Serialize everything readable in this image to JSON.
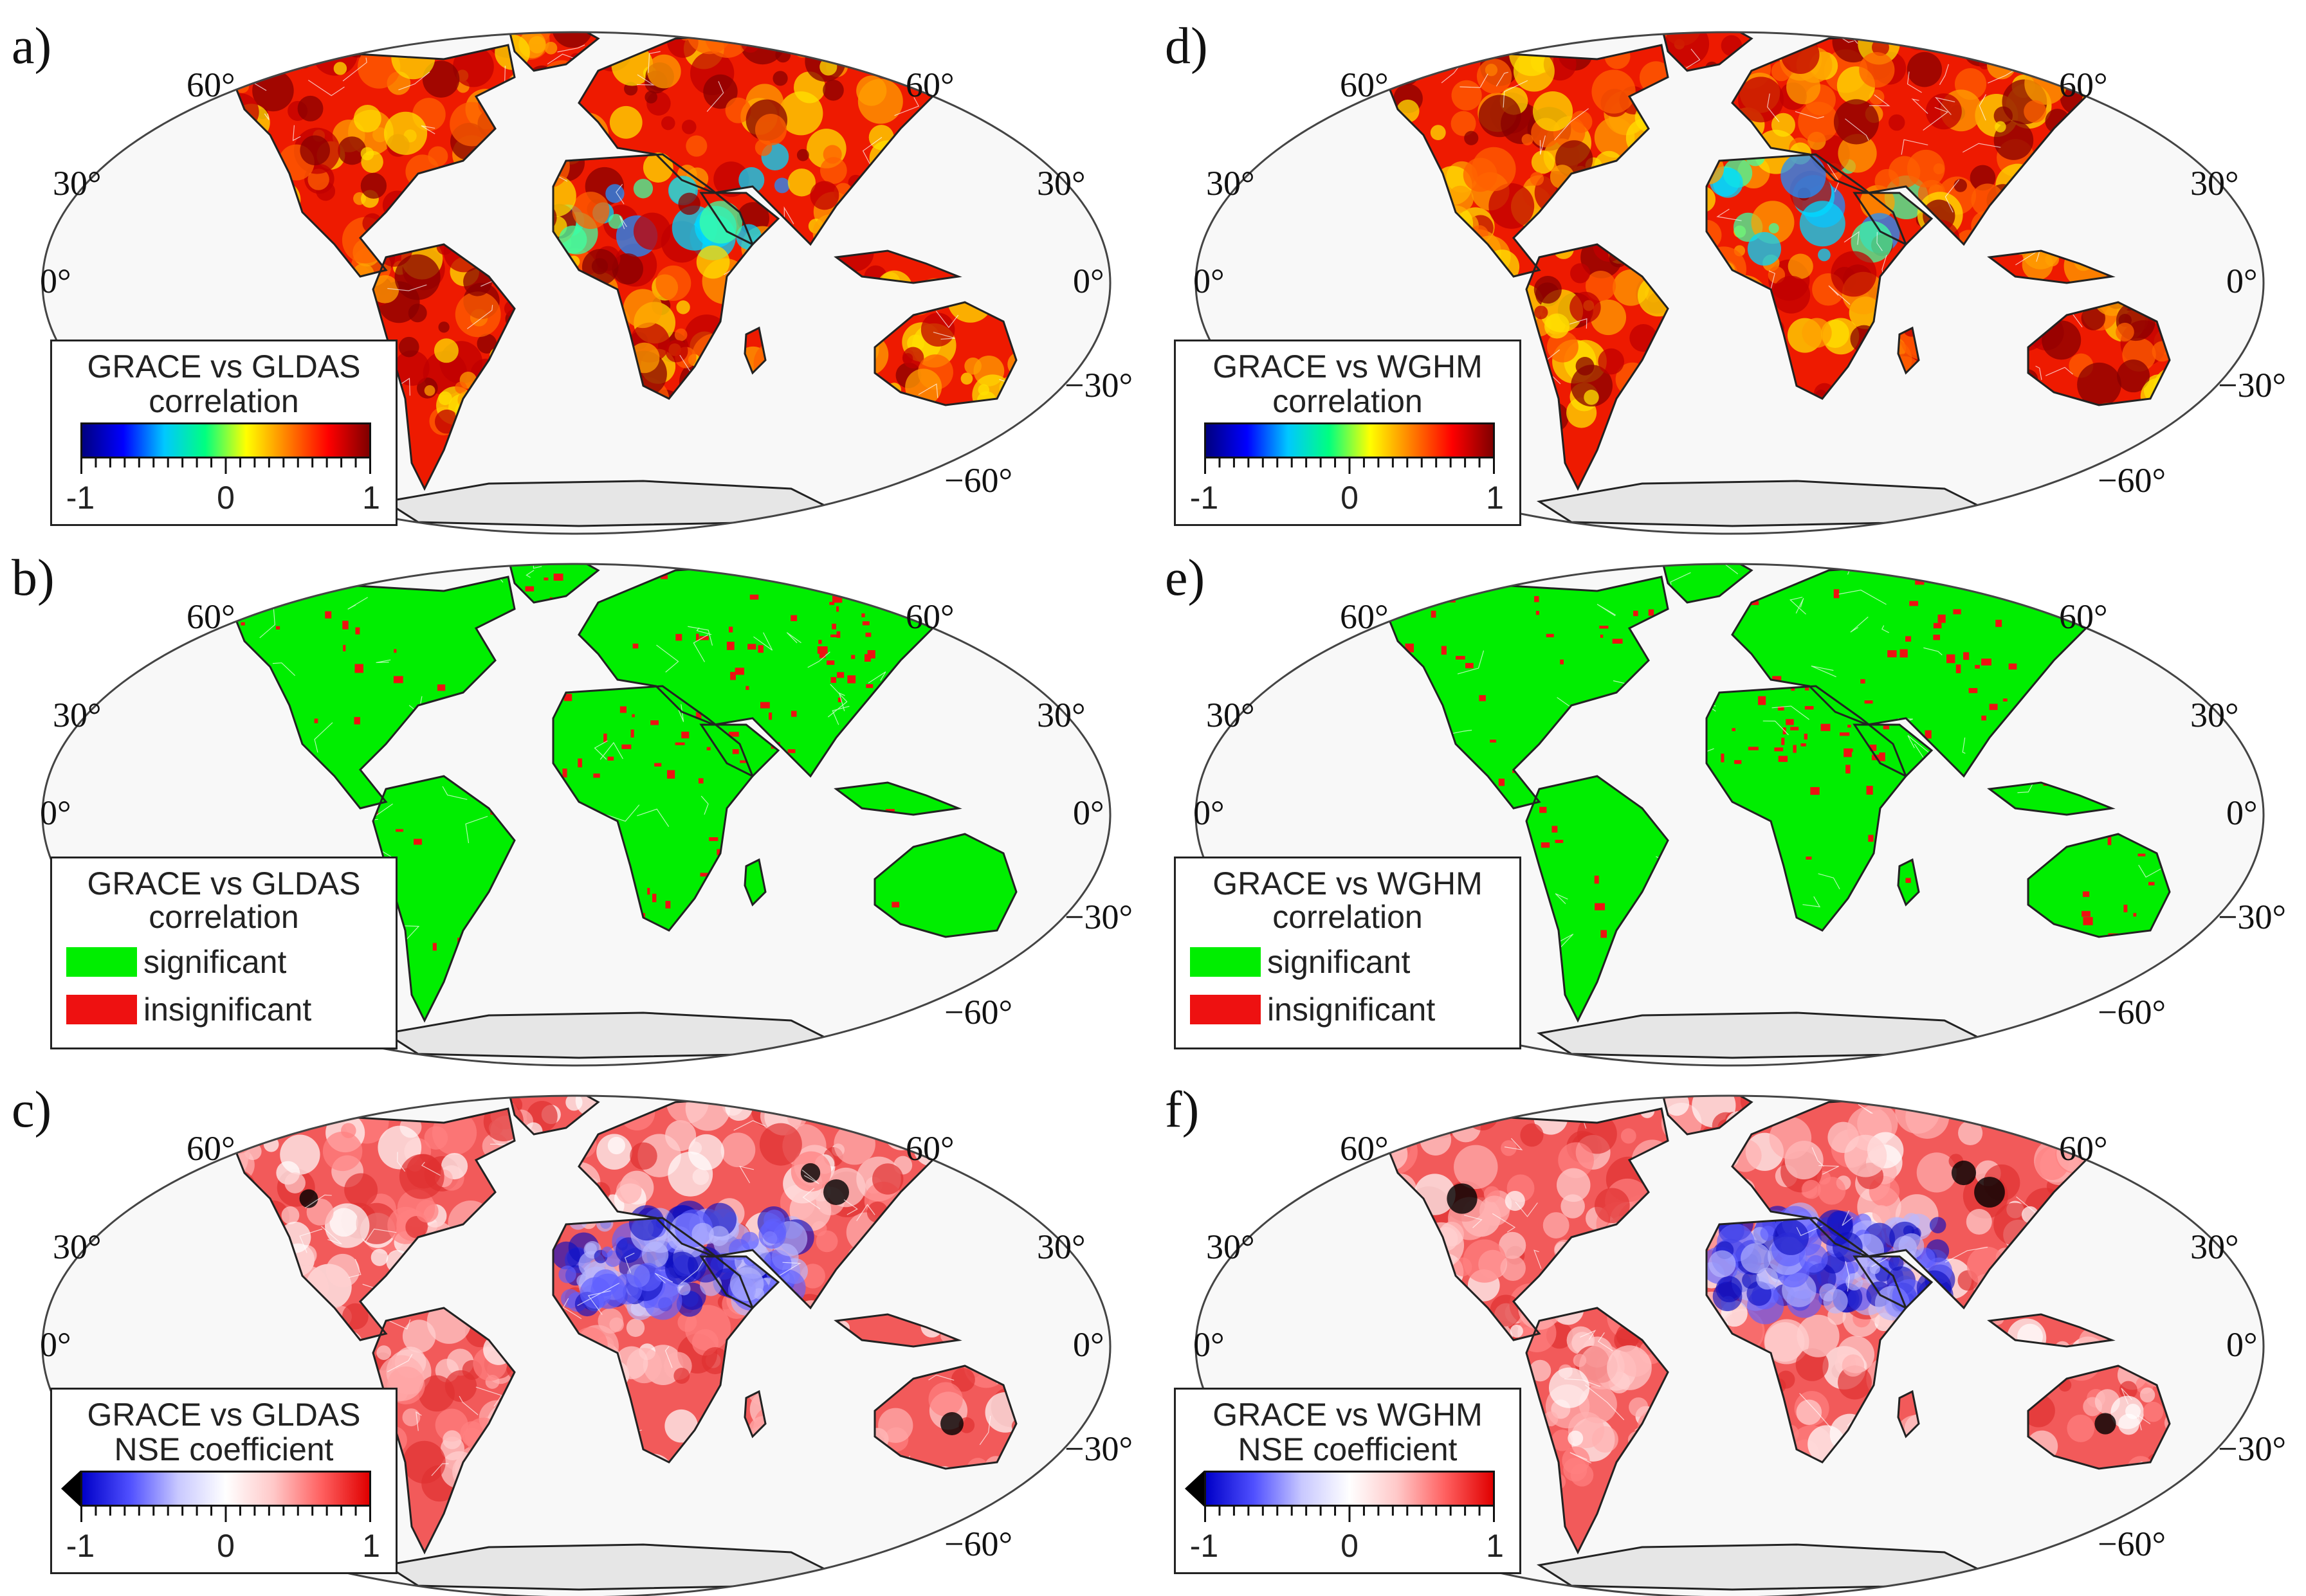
{
  "colors": {
    "ocean": "#f8f8f8",
    "outline": "#222222",
    "antarctica": "#e6e6e6",
    "significant": "#00ee00",
    "insignificant": "#ee1111"
  },
  "lat_labels": {
    "p60": "60°",
    "p30": "30°",
    "zero": "0°",
    "m30": "−30°",
    "m60": "−60°"
  },
  "panels": {
    "a": {
      "label": "a)",
      "type": "corr",
      "legend": {
        "line1": "GRACE vs GLDAS",
        "line2": "correlation",
        "ticks": [
          "-1",
          "0",
          "1"
        ]
      }
    },
    "b": {
      "label": "b)",
      "type": "sig",
      "legend": {
        "line1": "GRACE vs GLDAS",
        "line2": "correlation",
        "significant": "significant",
        "insignificant": "insignificant"
      }
    },
    "c": {
      "label": "c)",
      "type": "nse",
      "legend": {
        "line1": "GRACE vs GLDAS",
        "line2": "NSE coefficient",
        "ticks": [
          "-1",
          "0",
          "1"
        ]
      }
    },
    "d": {
      "label": "d)",
      "type": "corr",
      "legend": {
        "line1": "GRACE vs WGHM",
        "line2": "correlation",
        "ticks": [
          "-1",
          "0",
          "1"
        ]
      }
    },
    "e": {
      "label": "e)",
      "type": "sig",
      "legend": {
        "line1": "GRACE vs WGHM",
        "line2": "correlation",
        "significant": "significant",
        "insignificant": "insignificant"
      }
    },
    "f": {
      "label": "f)",
      "type": "nse",
      "legend": {
        "line1": "GRACE vs WGHM",
        "line2": "NSE coefficient",
        "ticks": [
          "-1",
          "0",
          "1"
        ]
      }
    }
  }
}
